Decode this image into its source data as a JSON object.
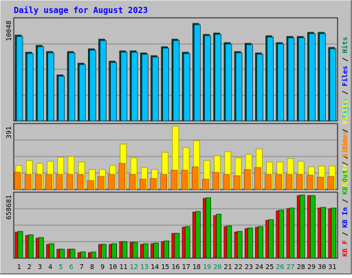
{
  "colors": {
    "background": "#c0c0c0",
    "panel": "#c0c0c0",
    "gridline": "#808080",
    "title": "#0000ff",
    "hits": "#00805c",
    "files": "#0000ff",
    "pages": "#00c0ff",
    "visits": "#ffff00",
    "sites": "#ff8000",
    "kbin": "#00c000",
    "kbout": "#ff0000",
    "weekday_label": "#000000",
    "weekend_label": "#00805c"
  },
  "chart_data": {
    "title": "Daily usage for August 2023",
    "days": [
      "1",
      "2",
      "3",
      "4",
      "5",
      "6",
      "7",
      "8",
      "9",
      "10",
      "11",
      "12",
      "13",
      "14",
      "15",
      "16",
      "17",
      "18",
      "19",
      "20",
      "21",
      "22",
      "23",
      "24",
      "25",
      "26",
      "27",
      "28",
      "29",
      "30",
      "31"
    ],
    "weekend_days": [
      "5",
      "6",
      "12",
      "13",
      "19",
      "20",
      "26",
      "27"
    ],
    "panels": [
      {
        "type": "bar",
        "scale_label": "10048",
        "ymax": 10048,
        "legend": [
          {
            "text": "Pages",
            "color": "#00c0ff"
          },
          {
            "text": " / ",
            "color": "#000000"
          },
          {
            "text": "Files",
            "color": "#0000ff"
          },
          {
            "text": " / ",
            "color": "#000000"
          },
          {
            "text": "Hits",
            "color": "#00805c"
          }
        ],
        "series": [
          {
            "name": "Hits",
            "color": "#00805c",
            "values": [
              8600,
              6850,
              7600,
              6950,
              4600,
              6920,
              5750,
              7250,
              8200,
              6000,
              7000,
              7050,
              6780,
              6540,
              7450,
              8200,
              6910,
              9740,
              8650,
              8780,
              7840,
              6940,
              7780,
              6790,
              8530,
              7820,
              8490,
              8450,
              8850,
              8900,
              7360
            ]
          },
          {
            "name": "Pages",
            "color": "#00c0ff",
            "values": [
              8600,
              6850,
              7600,
              6950,
              4600,
              6920,
              5750,
              7250,
              8200,
              6000,
              7000,
              7050,
              6780,
              6540,
              7450,
              8200,
              6910,
              9740,
              8650,
              8780,
              7840,
              6940,
              7780,
              6790,
              8530,
              7820,
              8490,
              8450,
              8850,
              8900,
              7360
            ]
          }
        ],
        "hits": [
          8600,
          6850,
          7600,
          6950,
          4600,
          6920,
          5750,
          7250,
          8200,
          6000,
          7000,
          7050,
          6780,
          6540,
          7450,
          8200,
          6910,
          9740,
          8650,
          8780,
          7840,
          6940,
          7780,
          6790,
          8530,
          7820,
          8490,
          8450,
          8850,
          8900,
          7360
        ],
        "pages": [
          8600,
          6850,
          7600,
          6950,
          4600,
          6920,
          5750,
          7250,
          8200,
          6000,
          7000,
          7050,
          6780,
          6540,
          7450,
          8200,
          6910,
          9740,
          8650,
          8780,
          7840,
          6940,
          7780,
          6790,
          8530,
          7820,
          8490,
          8450,
          8850,
          8900,
          7360
        ]
      },
      {
        "type": "bar",
        "scale_label": "391",
        "ymax": 391,
        "legend": [
          {
            "text": "Visits",
            "color": "#ffff00"
          },
          {
            "text": " / ",
            "color": "#000000"
          },
          {
            "text": "Sites",
            "color": "#ff8000"
          }
        ],
        "series": [
          {
            "name": "Visits",
            "color": "#ffff00",
            "values": [
              150,
              180,
              160,
              175,
              200,
              205,
              170,
              125,
              125,
              150,
              280,
              195,
              135,
              125,
              230,
              391,
              260,
              300,
              180,
              210,
              235,
              195,
              215,
              250,
              168,
              170,
              190,
              175,
              140,
              145,
              145
            ]
          },
          {
            "name": "Sites",
            "color": "#ff8000",
            "values": [
              105,
              95,
              95,
              95,
              95,
              95,
              95,
              55,
              80,
              95,
              160,
              95,
              65,
              70,
              95,
              120,
              120,
              140,
              65,
              105,
              95,
              85,
              125,
              135,
              95,
              95,
              95,
              95,
              90,
              75,
              80
            ]
          }
        ]
      },
      {
        "type": "bar",
        "scale_label": "658681",
        "ymax": 658681,
        "legend": [
          {
            "text": "KB F",
            "color": "#ff0000"
          },
          {
            "text": " / ",
            "color": "#000000"
          },
          {
            "text": "KB In",
            "color": "#0000ff"
          },
          {
            "text": " / ",
            "color": "#000000"
          },
          {
            "text": "KB Out",
            "color": "#00c000"
          },
          {
            "text": " / ",
            "color": "#000000"
          },
          {
            "text": "Sites",
            "color": "#ff8000"
          },
          {
            "text": " / ",
            "color": "#000000"
          },
          {
            "text": "Visits",
            "color": "#ffff00"
          }
        ],
        "series": [
          {
            "name": "KB F",
            "color": "#ff0000",
            "values": [
              275000,
              235000,
              210000,
              145000,
              90000,
              90000,
              60000,
              60000,
              140000,
              145000,
              170000,
              165000,
              145000,
              150000,
              175000,
              255000,
              325000,
              480000,
              620000,
              445000,
              330000,
              275000,
              310000,
              325000,
              395000,
              495000,
              515000,
              650000,
              653000,
              525000,
              515000
            ]
          },
          {
            "name": "KB Out",
            "color": "#00c000",
            "values": [
              280000,
              240000,
              215000,
              150000,
              95000,
              95000,
              65000,
              62000,
              145000,
              148000,
              173000,
              168000,
              148000,
              154000,
              180000,
              260000,
              330000,
              485000,
              627000,
              455000,
              335000,
              280000,
              315000,
              330000,
              400000,
              500000,
              525000,
              658681,
              655000,
              530000,
              525000
            ]
          }
        ]
      }
    ]
  }
}
